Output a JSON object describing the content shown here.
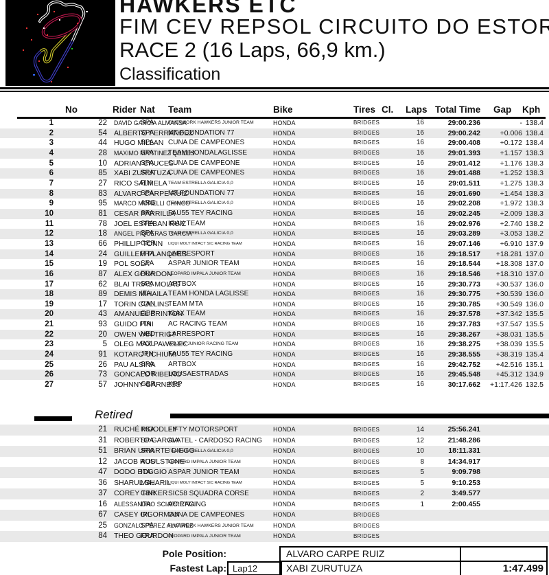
{
  "header": {
    "title": "HAWKERS ETC",
    "subtitle": "FIM CEV REPSOL CIRCUITO DO ESTORIL",
    "race_info": "RACE 2 (16 Laps, 66,9 km.)",
    "section": "Classification"
  },
  "table": {
    "columns": [
      "No",
      "Rider",
      "Nat",
      "Team",
      "Bike",
      "Tires",
      "Cl.",
      "Laps",
      "Total Time",
      "Gap",
      "Kph"
    ],
    "rows": [
      {
        "pos": "1",
        "no": "22",
        "rider": "DAVID GARCIA ALMANSA",
        "nat": "SPA",
        "team": "FINETWORK HAWKERS JUNIOR TEAM",
        "bike": "HONDA",
        "tires": "BRIDGES",
        "cl": "",
        "laps": "16",
        "total": "29:00.236",
        "gap": "-",
        "kph": "138.4"
      },
      {
        "pos": "2",
        "no": "54",
        "rider": "ALBERTO FERRANDEZ",
        "nat": "SPA",
        "team": "MT-FOUNDATION 77",
        "bike": "HONDA",
        "tires": "BRIDGES",
        "cl": "",
        "laps": "16",
        "total": "29:00.242",
        "gap": "+0.006",
        "kph": "138.4"
      },
      {
        "pos": "3",
        "no": "44",
        "rider": "HUGO MILLAN",
        "nat": "SPA",
        "team": "CUNA DE CAMPEONES",
        "bike": "HONDA",
        "tires": "BRIDGES",
        "cl": "",
        "laps": "16",
        "total": "29:00.408",
        "gap": "+0.172",
        "kph": "138.4"
      },
      {
        "pos": "4",
        "no": "28",
        "rider": "MAXIMO MARTINEZ QUILES",
        "nat": "SPA",
        "team": "TEAM HONDALAGLISSE",
        "bike": "HONDA",
        "tires": "BRIDGES",
        "cl": "",
        "laps": "16",
        "total": "29:01.393",
        "gap": "+1.157",
        "kph": "138.3"
      },
      {
        "pos": "5",
        "no": "10",
        "rider": "ADRIAN CRUCES",
        "nat": "SPA",
        "team": "CUNA DE CAMPEONE",
        "bike": "HONDA",
        "tires": "BRIDGES",
        "cl": "",
        "laps": "16",
        "total": "29:01.412",
        "gap": "+1.176",
        "kph": "138.3"
      },
      {
        "pos": "6",
        "no": "85",
        "rider": "XABI ZURUTUZA",
        "nat": "SPA",
        "team": "CUNA DE CAMPEONES",
        "bike": "HONDA",
        "tires": "BRIDGES",
        "cl": "",
        "laps": "16",
        "total": "29:01.488",
        "gap": "+1.252",
        "kph": "138.3"
      },
      {
        "pos": "7",
        "no": "27",
        "rider": "RICO SALMELA",
        "nat": "FIN",
        "team": "TEAM ESTRELLA GALICIA 0,0",
        "bike": "HONDA",
        "tires": "BRIDGES",
        "cl": "",
        "laps": "16",
        "total": "29:01.511",
        "gap": "+1.275",
        "kph": "138.3"
      },
      {
        "pos": "8",
        "no": "83",
        "rider": "ALVARO CARPE RUIZ",
        "nat": "SPA",
        "team": "MT-FOUNDATION 77",
        "bike": "HONDA",
        "tires": "BRIDGES",
        "cl": "",
        "laps": "16",
        "total": "29:01.690",
        "gap": "+1.454",
        "kph": "138.3"
      },
      {
        "pos": "9",
        "no": "95",
        "rider": "MARCO MORELLI CHINCO",
        "nat": "ARG",
        "team": "TEAM ESTRELLA GALICIA 0,0",
        "bike": "HONDA",
        "tires": "BRIDGES",
        "cl": "",
        "laps": "16",
        "total": "29:02.208",
        "gap": "+1.972",
        "kph": "138.3"
      },
      {
        "pos": "10",
        "no": "81",
        "rider": "CESAR PARRILLA",
        "nat": "SPA",
        "team": "FAU55 TEY RACING",
        "bike": "HONDA",
        "tires": "BRIDGES",
        "cl": "",
        "laps": "16",
        "total": "29:02.245",
        "gap": "+2.009",
        "kph": "138.3"
      },
      {
        "pos": "11",
        "no": "78",
        "rider": "JOEL ESTEBAN RUIZ",
        "nat": "SPA",
        "team": "IGAX TEAM",
        "bike": "HONDA",
        "tires": "BRIDGES",
        "cl": "",
        "laps": "16",
        "total": "29:02.976",
        "gap": "+2.740",
        "kph": "138.2"
      },
      {
        "pos": "12",
        "no": "18",
        "rider": "ANGEL PIQUERAS GARCIA",
        "nat": "SPA",
        "team": "TEAM ESTRELLA GALICIA 0,0",
        "bike": "HONDA",
        "tires": "BRIDGES",
        "cl": "",
        "laps": "16",
        "total": "29:03.289",
        "gap": "+3.053",
        "kph": "138.2"
      },
      {
        "pos": "13",
        "no": "66",
        "rider": "PHILLIP TONN",
        "nat": "GER",
        "team": "LIQUI MOLY INTACT SIC RACING TEAM",
        "bike": "HONDA",
        "tires": "BRIDGES",
        "cl": "",
        "laps": "16",
        "total": "29:07.146",
        "gap": "+6.910",
        "kph": "137.9"
      },
      {
        "pos": "14",
        "no": "24",
        "rider": "GUILLEM PLANQUES",
        "nat": "FRA",
        "team": "LARRESPORT",
        "bike": "HONDA",
        "tires": "BRIDGES",
        "cl": "",
        "laps": "16",
        "total": "29:18.517",
        "gap": "+18.281",
        "kph": "137.0"
      },
      {
        "pos": "15",
        "no": "19",
        "rider": "POL SOLA",
        "nat": "SPA",
        "team": "ASPAR JUNIOR TEAM",
        "bike": "HONDA",
        "tires": "BRIDGES",
        "cl": "",
        "laps": "16",
        "total": "29:18.544",
        "gap": "+18.308",
        "kph": "137.0"
      },
      {
        "pos": "16",
        "no": "87",
        "rider": "ALEX GOURDON",
        "nat": "FRA",
        "team": "LEOPARD IMPALA JUNIOR TEAM",
        "bike": "HONDA",
        "tires": "BRIDGES",
        "cl": "",
        "laps": "16",
        "total": "29:18.546",
        "gap": "+18.310",
        "kph": "137.0"
      },
      {
        "pos": "17",
        "no": "62",
        "rider": "BLAI TRIAS MOLAS",
        "nat": "SPA",
        "team": "ARTBOX",
        "bike": "HONDA",
        "tires": "BRIDGES",
        "cl": "",
        "laps": "16",
        "total": "29:30.773",
        "gap": "+30.537",
        "kph": "136.0"
      },
      {
        "pos": "18",
        "no": "89",
        "rider": "DEMIS MIHAILA",
        "nat": "ITA",
        "team": "TEAM HONDA LAGLISSE",
        "bike": "HONDA",
        "tires": "BRIDGES",
        "cl": "",
        "laps": "16",
        "total": "29:30.775",
        "gap": "+30.539",
        "kph": "136.0"
      },
      {
        "pos": "19",
        "no": "17",
        "rider": "TORIN COLLINS",
        "nat": "CAN",
        "team": "TEAM MTA",
        "bike": "HONDA",
        "tires": "BRIDGES",
        "cl": "",
        "laps": "16",
        "total": "29:30.785",
        "gap": "+30.549",
        "kph": "136.0"
      },
      {
        "pos": "20",
        "no": "43",
        "rider": "AMANUEL BRINTON",
        "nat": "GBR",
        "team": "IGAX TEAM",
        "bike": "HONDA",
        "tires": "BRIDGES",
        "cl": "",
        "laps": "16",
        "total": "29:37.578",
        "gap": "+37.342",
        "kph": "135.5"
      },
      {
        "pos": "21",
        "no": "93",
        "rider": "GUIDO PINI",
        "nat": "ITA",
        "team": "AC RACING TEAM",
        "bike": "HONDA",
        "tires": "BRIDGES",
        "cl": "",
        "laps": "16",
        "total": "29:37.783",
        "gap": "+37.547",
        "kph": "135.5"
      },
      {
        "pos": "22",
        "no": "20",
        "rider": "OWEN VAN TRIGT",
        "nat": "NED",
        "team": "LARRESPORT",
        "bike": "HONDA",
        "tires": "BRIDGES",
        "cl": "",
        "laps": "16",
        "total": "29:38.267",
        "gap": "+38.031",
        "kph": "135.5"
      },
      {
        "pos": "23",
        "no": "5",
        "rider": "OLEG MAX PAWELEC",
        "nat": "POL",
        "team": "WOJCIK JUNIOR RACING TEAM",
        "bike": "HONDA",
        "tires": "BRIDGES",
        "cl": "",
        "laps": "16",
        "total": "29:38.275",
        "gap": "+38.039",
        "kph": "135.5"
      },
      {
        "pos": "24",
        "no": "91",
        "rider": "KOTARO UCHIUMI",
        "nat": "JPN",
        "team": "FAU55 TEY RACING",
        "bike": "HONDA",
        "tires": "BRIDGES",
        "cl": "",
        "laps": "16",
        "total": "29:38.555",
        "gap": "+38.319",
        "kph": "135.4"
      },
      {
        "pos": "25",
        "no": "26",
        "rider": "PAU ALSINA",
        "nat": "SPA",
        "team": "ARTBOX",
        "bike": "HONDA",
        "tires": "BRIDGES",
        "cl": "",
        "laps": "16",
        "total": "29:42.752",
        "gap": "+42.516",
        "kph": "135.1"
      },
      {
        "pos": "26",
        "no": "73",
        "rider": "GONCALO RIBEIRO",
        "nat": "POR",
        "team": "LOUSAESTRADAS",
        "bike": "HONDA",
        "tires": "BRIDGES",
        "cl": "",
        "laps": "16",
        "total": "29:45.548",
        "gap": "+45.312",
        "kph": "134.9"
      },
      {
        "pos": "27",
        "no": "57",
        "rider": "JOHNNY GARNESS",
        "nat": "GBR",
        "team": "KRP",
        "bike": "HONDA",
        "tires": "BRIDGES",
        "cl": "",
        "laps": "16",
        "total": "30:17.662",
        "gap": "+1:17.426",
        "kph": "132.5"
      }
    ]
  },
  "retired": {
    "label": "Retired",
    "rows": [
      {
        "no": "21",
        "rider": "RUCHÉ MOODLEY",
        "nat": "RSA",
        "team": "FIFTY MOTORSPORT",
        "bike": "HONDA",
        "tires": "BRIDGES",
        "laps": "14",
        "total": "25:56.241"
      },
      {
        "no": "31",
        "rider": "ROBERTO GARCIA",
        "nat": "SPA",
        "team": "AVATEL - CARDOSO RACING",
        "bike": "HONDA",
        "tires": "BRIDGES",
        "laps": "12",
        "total": "21:48.286"
      },
      {
        "no": "51",
        "rider": "BRIAN URIARTE DIEGO",
        "nat": "SPA",
        "team": "TEAM ESTRELLA GALICIA 0,0",
        "bike": "HONDA",
        "tires": "BRIDGES",
        "laps": "10",
        "total": "18:11.331"
      },
      {
        "no": "12",
        "rider": "JACOB ROULSTONE",
        "nat": "AUS",
        "team": "LEOPARD IMPALA JUNIOR TEAM",
        "bike": "HONDA",
        "tires": "BRIDGES",
        "laps": "8",
        "total": "14:34.917"
      },
      {
        "no": "47",
        "rider": "DODO BOGGIO",
        "nat": "ITA",
        "team": "ASPAR JUNIOR TEAM",
        "bike": "HONDA",
        "tires": "BRIDGES",
        "laps": "5",
        "total": "9:09.798"
      },
      {
        "no": "36",
        "rider": "SHARUL SHARIL",
        "nat": "MAL",
        "team": "LIQUI MOLY INTACT SIC RACING TEAM",
        "bike": "HONDA",
        "tires": "BRIDGES",
        "laps": "5",
        "total": "9:10.253"
      },
      {
        "no": "37",
        "rider": "COREY TINKER",
        "nat": "GBR",
        "team": "SIC58 SQUADRA CORSE",
        "bike": "HONDA",
        "tires": "BRIDGES",
        "laps": "2",
        "total": "3:49.577"
      },
      {
        "no": "16",
        "rider": "ALESSANDRO SCIARRETTA",
        "nat": "ITA",
        "team": "AC RACING",
        "bike": "HONDA",
        "tires": "BRIDGES",
        "laps": "1",
        "total": "2:00.455"
      },
      {
        "no": "67",
        "rider": "CASEY O'GORMAN",
        "nat": "IRL",
        "team": "CUNA DE CAMPEONES",
        "bike": "HONDA",
        "tires": "BRIDGES",
        "laps": "",
        "total": ""
      },
      {
        "no": "25",
        "rider": "GONZALO PÉREZ ALVAREZ",
        "nat": "SPA",
        "team": "FINETWORK HAWKERS JUNIOR TEAM",
        "bike": "HONDA",
        "tires": "BRIDGES",
        "laps": "",
        "total": ""
      },
      {
        "no": "84",
        "rider": "THEO GOURDON",
        "nat": "FRA",
        "team": "LEOPARD IMPALA JUNIOR TEAM",
        "bike": "HONDA",
        "tires": "BRIDGES",
        "laps": "",
        "total": ""
      }
    ]
  },
  "footer": {
    "pole_label": "Pole Position:",
    "pole_rider": "ALVARO CARPE RUIZ",
    "fastest_label": "Fastest Lap:",
    "fastest_lap_no": "Lap12",
    "fastest_rider": "XABI ZURUTUZA",
    "fastest_time": "1:47.499"
  },
  "colors": {
    "stripe": "#e9e9e9",
    "track_white": "#f2f2f2",
    "track_red": "#b5174a",
    "track_yellow": "#c8c22a",
    "track_blue": "#3b3bbf"
  }
}
